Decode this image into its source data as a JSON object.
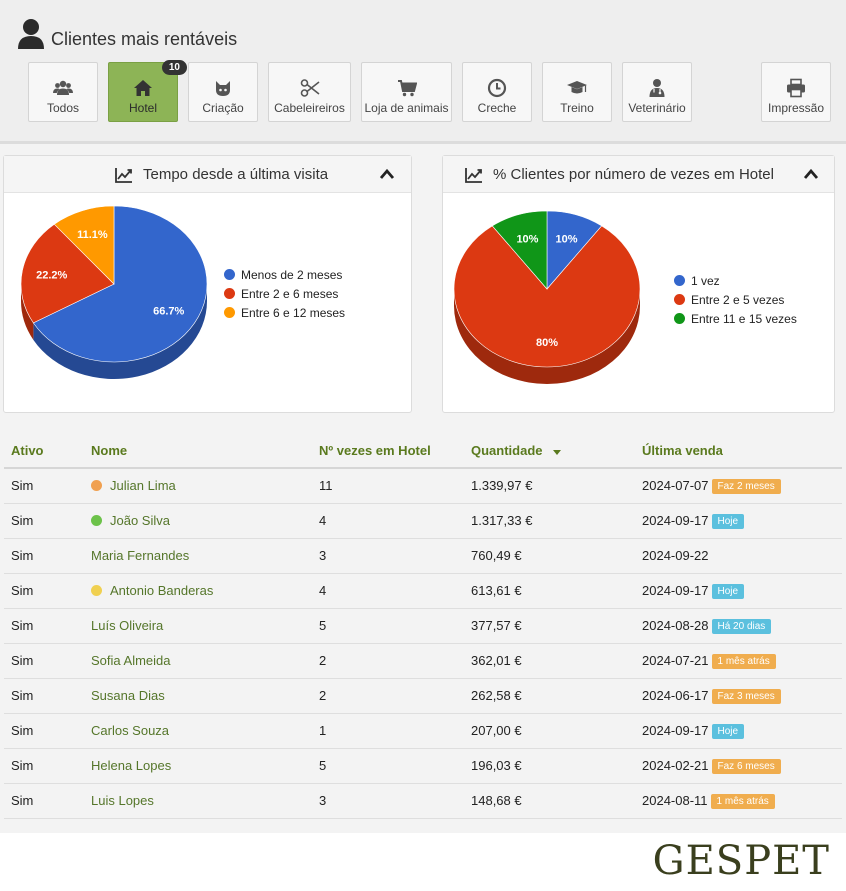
{
  "header": {
    "title": "Clientes mais rentáveis",
    "user_icon": "user-icon"
  },
  "toolbar": {
    "buttons": [
      {
        "label": "Todos",
        "icon": "users-icon"
      },
      {
        "label": "Hotel",
        "icon": "home-icon",
        "badge": "10",
        "active": true
      },
      {
        "label": "Criação",
        "icon": "cat-icon"
      },
      {
        "label": "Cabeleireiros",
        "icon": "scissors-icon"
      },
      {
        "label": "Loja de animais",
        "icon": "cart-icon"
      },
      {
        "label": "Creche",
        "icon": "clock-icon"
      },
      {
        "label": "Treino",
        "icon": "graduation-cap-icon"
      },
      {
        "label": "Veterinário",
        "icon": "doctor-icon"
      }
    ],
    "print_label": "Impressão",
    "print_icon": "printer-icon"
  },
  "chart_data": [
    {
      "type": "pie",
      "title": "Tempo desde a última visita",
      "categories": [
        "Menos de 2 meses",
        "Entre 2 e 6 meses",
        "Entre 6 e 12 meses"
      ],
      "values": [
        66.7,
        22.2,
        11.1
      ],
      "labels": [
        "66.7%",
        "22.2%",
        "11.1%"
      ],
      "colors": [
        "#3366cc",
        "#dc3912",
        "#ff9900"
      ],
      "legend": "right"
    },
    {
      "type": "pie",
      "title": "% Clientes por número de vezes em Hotel",
      "categories": [
        "1 vez",
        "Entre 2 e 5 vezes",
        "Entre 11 e 15 vezes"
      ],
      "values": [
        10,
        80,
        10
      ],
      "labels": [
        "10%",
        "80%",
        "10%"
      ],
      "colors": [
        "#3366cc",
        "#dc3912",
        "#109618"
      ],
      "legend": "right"
    }
  ],
  "table": {
    "headers": [
      "Ativo",
      "Nome",
      "Nº vezes em Hotel",
      "Quantidade",
      "Última venda"
    ],
    "rows": [
      {
        "ativo": "Sim",
        "nome": "Julian Lima",
        "dot": "#f0a050",
        "vezes": "11",
        "quantidade": "1.339,97 €",
        "venda": "2024-07-07",
        "tag": "Faz 2 meses",
        "tag_color": "#f0ad4e"
      },
      {
        "ativo": "Sim",
        "nome": "João Silva",
        "dot": "#6cc24a",
        "vezes": "4",
        "quantidade": "1.317,33 €",
        "venda": "2024-09-17",
        "tag": "Hoje",
        "tag_color": "#5bc0de"
      },
      {
        "ativo": "Sim",
        "nome": "Maria Fernandes",
        "dot": "",
        "vezes": "3",
        "quantidade": "760,49 €",
        "venda": "2024-09-22",
        "tag": "",
        "tag_color": ""
      },
      {
        "ativo": "Sim",
        "nome": "Antonio Banderas",
        "dot": "#f0d050",
        "vezes": "4",
        "quantidade": "613,61 €",
        "venda": "2024-09-17",
        "tag": "Hoje",
        "tag_color": "#5bc0de"
      },
      {
        "ativo": "Sim",
        "nome": "Luís Oliveira",
        "dot": "",
        "vezes": "5",
        "quantidade": "377,57 €",
        "venda": "2024-08-28",
        "tag": "Há 20 dias",
        "tag_color": "#5bc0de"
      },
      {
        "ativo": "Sim",
        "nome": "Sofia Almeida",
        "dot": "",
        "vezes": "2",
        "quantidade": "362,01 €",
        "venda": "2024-07-21",
        "tag": "1 mês atrás",
        "tag_color": "#f0ad4e"
      },
      {
        "ativo": "Sim",
        "nome": "Susana Dias",
        "dot": "",
        "vezes": "2",
        "quantidade": "262,58 €",
        "venda": "2024-06-17",
        "tag": "Faz 3 meses",
        "tag_color": "#f0ad4e"
      },
      {
        "ativo": "Sim",
        "nome": "Carlos Souza",
        "dot": "",
        "vezes": "1",
        "quantidade": "207,00 €",
        "venda": "2024-09-17",
        "tag": "Hoje",
        "tag_color": "#5bc0de"
      },
      {
        "ativo": "Sim",
        "nome": "Helena Lopes",
        "dot": "",
        "vezes": "5",
        "quantidade": "196,03 €",
        "venda": "2024-02-21",
        "tag": "Faz 6 meses",
        "tag_color": "#f0ad4e"
      },
      {
        "ativo": "Sim",
        "nome": "Luis Lopes",
        "dot": "",
        "vezes": "3",
        "quantidade": "148,68 €",
        "venda": "2024-08-11",
        "tag": "1 mês atrás",
        "tag_color": "#f0ad4e"
      }
    ]
  },
  "footer": {
    "logo": "GESPET"
  }
}
